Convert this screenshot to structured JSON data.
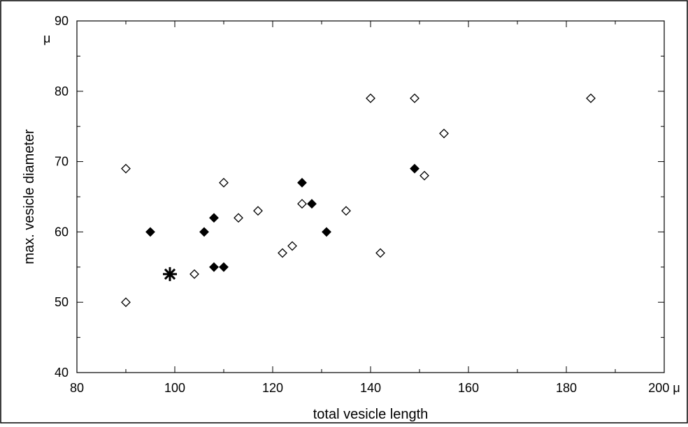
{
  "chart_data": {
    "type": "scatter",
    "xlabel": "total vesicle length",
    "ylabel": "max. vesicle diameter",
    "x_unit": "μ",
    "y_unit": "μ",
    "xlim": [
      80,
      200
    ],
    "ylim": [
      40,
      90
    ],
    "x_ticks": [
      80,
      100,
      120,
      140,
      160,
      180,
      200
    ],
    "y_ticks": [
      40,
      50,
      60,
      70,
      80,
      90
    ],
    "grid": false,
    "legend": "none",
    "series": [
      {
        "marker": "open-diamond",
        "points": [
          {
            "x": 90,
            "y": 69
          },
          {
            "x": 90,
            "y": 50
          },
          {
            "x": 104,
            "y": 54
          },
          {
            "x": 110,
            "y": 67
          },
          {
            "x": 113,
            "y": 62
          },
          {
            "x": 117,
            "y": 63
          },
          {
            "x": 122,
            "y": 57
          },
          {
            "x": 124,
            "y": 58
          },
          {
            "x": 126,
            "y": 64
          },
          {
            "x": 135,
            "y": 63
          },
          {
            "x": 140,
            "y": 79
          },
          {
            "x": 142,
            "y": 57
          },
          {
            "x": 149,
            "y": 79
          },
          {
            "x": 151,
            "y": 68
          },
          {
            "x": 155,
            "y": 74
          },
          {
            "x": 185,
            "y": 79
          }
        ]
      },
      {
        "marker": "filled-diamond",
        "points": [
          {
            "x": 95,
            "y": 60
          },
          {
            "x": 106,
            "y": 60
          },
          {
            "x": 108,
            "y": 62
          },
          {
            "x": 108,
            "y": 55
          },
          {
            "x": 110,
            "y": 55
          },
          {
            "x": 126,
            "y": 67
          },
          {
            "x": 128,
            "y": 64
          },
          {
            "x": 131,
            "y": 60
          },
          {
            "x": 149,
            "y": 69
          }
        ]
      },
      {
        "marker": "asterisk",
        "points": [
          {
            "x": 99,
            "y": 54
          }
        ]
      }
    ]
  }
}
